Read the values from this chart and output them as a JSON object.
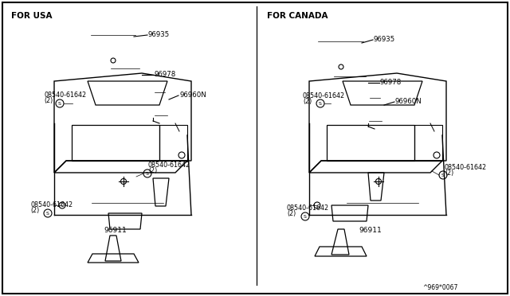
{
  "background_color": "#ffffff",
  "border_color": "#000000",
  "line_color": "#000000",
  "text_color": "#000000",
  "label_usa": "FOR USA",
  "label_canada": "FOR CANADA",
  "footer_text": "^969*0067",
  "part_96935": "96935",
  "part_96978": "96978",
  "part_96960N": "96960N",
  "part_96911": "96911",
  "part_bolt": "08540-61642",
  "part_qty": "(2)",
  "part_s": "S",
  "figsize": [
    6.4,
    3.72
  ],
  "dpi": 100
}
